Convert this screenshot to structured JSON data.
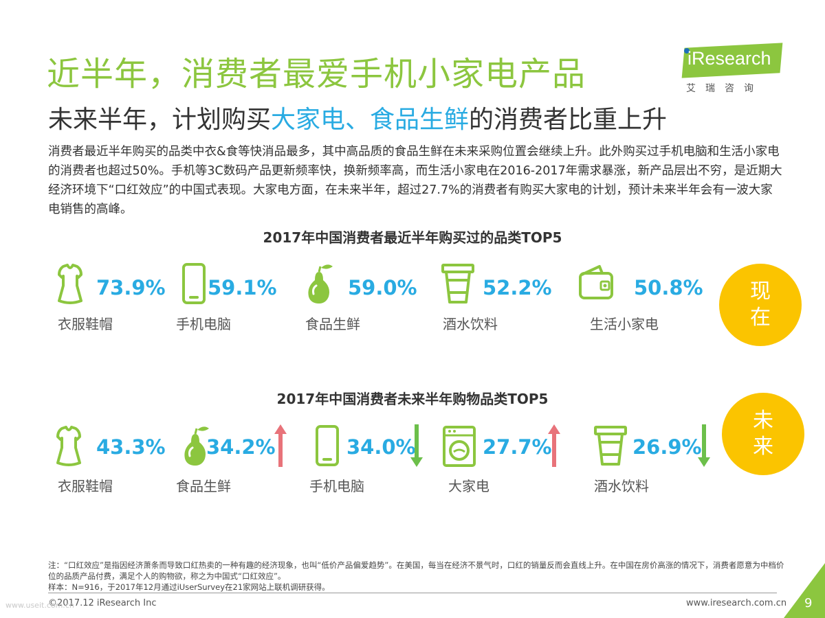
{
  "header": {
    "title": "近半年，消费者最爱手机小家电产品",
    "subtitle_pre": "未来半年，计划购买",
    "subtitle_hl": "大家电、食品生鲜",
    "subtitle_post": "的消费者比重上升"
  },
  "logo": {
    "word": "iResearch",
    "cn": "艾瑞咨询"
  },
  "paragraph": "消费者最近半年购买的品类中衣&食等快消品最多，其中高品质的食品生鲜在未来采购位置会继续上升。此外购买过手机电脑和生活小家电的消费者也超过50%。手机等3C数码产品更新频率快，换新频率高，而生活小家电在2016-2017年需求暴涨，新产品层出不穷，是近期大经济环境下“口红效应”的中国式表现。大家电方面，在未来半年，超过27.7%的消费者有购买大家电的计划，预计未来半年会有一波大家电销售的高峰。",
  "colors": {
    "green": "#8cc63f",
    "blue": "#29abe2",
    "yellow": "#fbc400",
    "up": "#e8737a",
    "down": "#6cbf4a"
  },
  "chart_data": [
    {
      "type": "bar",
      "title": "2017年中国消费者最近半年购买过的品类TOP5",
      "badge": "现在",
      "categories": [
        "衣服鞋帽",
        "手机电脑",
        "食品生鲜",
        "酒水饮料",
        "生活小家电"
      ],
      "values": [
        73.9,
        59.1,
        59.0,
        52.2,
        50.8
      ],
      "value_labels": [
        "73.9%",
        "59.1%",
        "59.0%",
        "52.2%",
        "50.8%"
      ],
      "icons": [
        "dress-icon",
        "phone-icon",
        "pear-icon",
        "cup-icon",
        "wallet-icon"
      ],
      "trend": [
        "",
        "",
        "",
        "",
        ""
      ]
    },
    {
      "type": "bar",
      "title": "2017年中国消费者未来半年购物品类TOP5",
      "badge": "未来",
      "categories": [
        "衣服鞋帽",
        "食品生鲜",
        "手机电脑",
        "大家电",
        "酒水饮料"
      ],
      "values": [
        43.3,
        34.2,
        34.0,
        27.7,
        26.9
      ],
      "value_labels": [
        "43.3%",
        "34.2%",
        "34.0%",
        "27.7%",
        "26.9%"
      ],
      "icons": [
        "dress-icon",
        "pear-icon",
        "phone-icon",
        "washer-icon",
        "cup-icon"
      ],
      "trend": [
        "",
        "up",
        "down",
        "up",
        "down"
      ]
    }
  ],
  "note": {
    "line1": "注：“口红效应”是指因经济萧条而导致口红热卖的一种有趣的经济现象，也叫“低价产品偏爱趋势”。在美国，每当在经济不景气时，口红的销量反而会直线上升。在中国在房价高涨的情况下，消费者愿意为中档价位的品质产品付费，满足个人的购物欲，称之为中国式“口红效应”。",
    "line2": "样本：N=916，于2017年12月通过iUserSurvey在21家网站上联机调研获得。"
  },
  "footer": {
    "copyright": "©2017.12 iResearch Inc",
    "url": "www.iresearch.com.cn",
    "page": "9",
    "watermark": "www.useit.com.cn"
  }
}
